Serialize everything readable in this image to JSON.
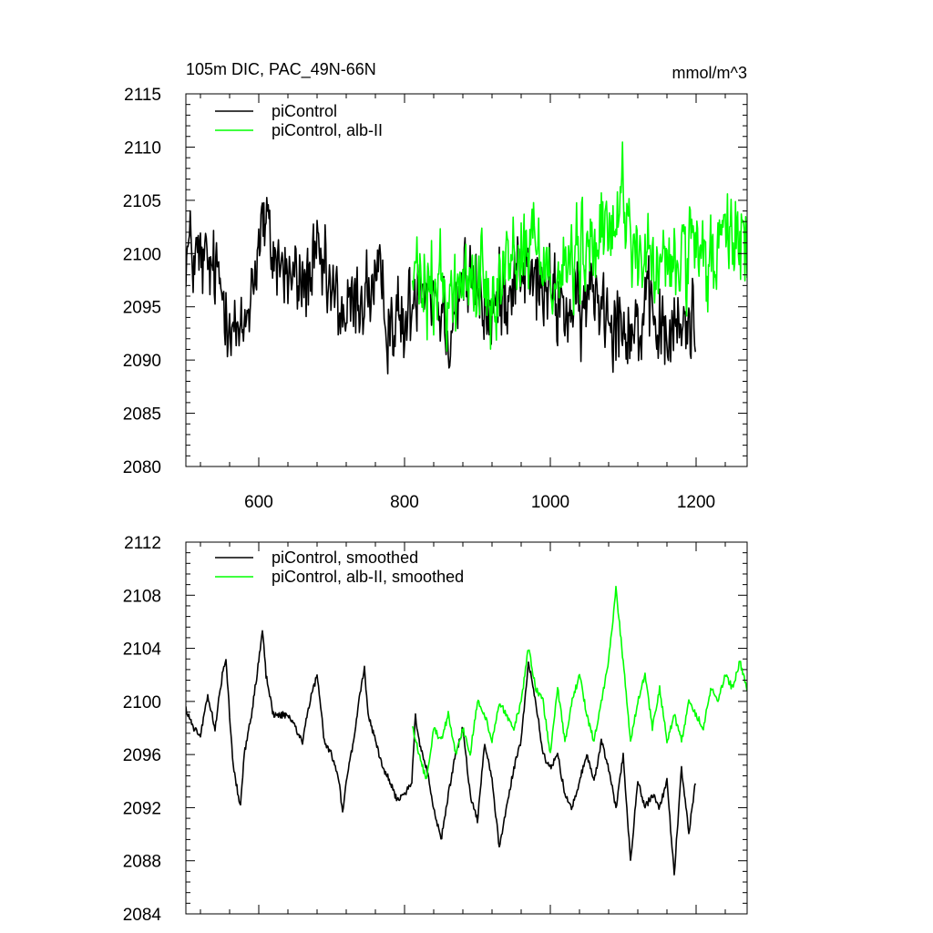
{
  "chart_data": [
    {
      "type": "line",
      "title": "105m DIC, PAC_49N-66N",
      "units": "mmol/m^3",
      "xlim": [
        500,
        1270
      ],
      "ylim": [
        2080,
        2115
      ],
      "x_ticks": [
        600,
        800,
        1000,
        1200
      ],
      "x_tick_labels": [
        "600",
        "800",
        "1000",
        "1200"
      ],
      "y_ticks": [
        2080,
        2085,
        2090,
        2095,
        2100,
        2105,
        2110,
        2115
      ],
      "y_tick_labels": [
        "2080",
        "2085",
        "2090",
        "2095",
        "2100",
        "2105",
        "2110",
        "2115"
      ],
      "legend_position": "top-left",
      "series": [
        {
          "name": "piControl",
          "color": "#000000",
          "x_range": [
            500,
            1199
          ],
          "anchors": [
            [
              500,
              2100.5
            ],
            [
              520,
              2099
            ],
            [
              540,
              2098
            ],
            [
              560,
              2095
            ],
            [
              575,
              2091
            ],
            [
              590,
              2097
            ],
            [
              605,
              2103
            ],
            [
              620,
              2100
            ],
            [
              640,
              2098
            ],
            [
              660,
              2097
            ],
            [
              680,
              2099
            ],
            [
              700,
              2096
            ],
            [
              720,
              2094
            ],
            [
              740,
              2096
            ],
            [
              760,
              2097
            ],
            [
              780,
              2094
            ],
            [
              800,
              2093
            ],
            [
              810,
              2095
            ],
            [
              820,
              2099
            ],
            [
              840,
              2097
            ],
            [
              860,
              2093
            ],
            [
              880,
              2098
            ],
            [
              900,
              2096
            ],
            [
              920,
              2094
            ],
            [
              940,
              2097
            ],
            [
              960,
              2099
            ],
            [
              980,
              2097
            ],
            [
              1000,
              2096
            ],
            [
              1020,
              2095
            ],
            [
              1040,
              2094
            ],
            [
              1060,
              2097
            ],
            [
              1080,
              2095
            ],
            [
              1100,
              2094
            ],
            [
              1120,
              2093
            ],
            [
              1140,
              2094
            ],
            [
              1160,
              2092
            ],
            [
              1180,
              2093
            ],
            [
              1199,
              2094
            ]
          ],
          "noise_amplitude": 3.6
        },
        {
          "name": "piControl, alb-II",
          "color": "#00ff00",
          "x_range": [
            811,
            1270
          ],
          "anchors": [
            [
              811,
              2098
            ],
            [
              830,
              2096
            ],
            [
              850,
              2097
            ],
            [
              870,
              2096
            ],
            [
              890,
              2098
            ],
            [
              910,
              2097
            ],
            [
              930,
              2098
            ],
            [
              950,
              2100
            ],
            [
              970,
              2101
            ],
            [
              990,
              2100
            ],
            [
              1010,
              2098
            ],
            [
              1030,
              2099
            ],
            [
              1050,
              2100
            ],
            [
              1070,
              2101
            ],
            [
              1090,
              2103
            ],
            [
              1100,
              2106
            ],
            [
              1110,
              2103
            ],
            [
              1120,
              2099
            ],
            [
              1140,
              2099
            ],
            [
              1160,
              2098
            ],
            [
              1180,
              2100
            ],
            [
              1200,
              2099
            ],
            [
              1220,
              2099
            ],
            [
              1240,
              2101
            ],
            [
              1260,
              2102
            ],
            [
              1270,
              2101
            ]
          ],
          "noise_amplitude": 3.8
        }
      ]
    },
    {
      "type": "line",
      "xlim": [
        500,
        1270
      ],
      "ylim": [
        2084,
        2112
      ],
      "x_ticks": [
        600,
        800,
        1000,
        1200
      ],
      "y_ticks": [
        2084,
        2088,
        2092,
        2096,
        2100,
        2104,
        2108,
        2112
      ],
      "y_tick_labels": [
        "2084",
        "2088",
        "2092",
        "2096",
        "2100",
        "2104",
        "2108",
        "2112"
      ],
      "legend_position": "top-left",
      "series": [
        {
          "name": "piControl, smoothed",
          "color": "#000000",
          "x_range": [
            500,
            1199
          ],
          "anchors": [
            [
              500,
              2099.5
            ],
            [
              510,
              2098
            ],
            [
              520,
              2097.5
            ],
            [
              530,
              2100.5
            ],
            [
              540,
              2098
            ],
            [
              550,
              2102
            ],
            [
              555,
              2103
            ],
            [
              560,
              2099
            ],
            [
              565,
              2095
            ],
            [
              570,
              2093.5
            ],
            [
              575,
              2092
            ],
            [
              580,
              2096
            ],
            [
              590,
              2099
            ],
            [
              600,
              2103
            ],
            [
              605,
              2105.5
            ],
            [
              610,
              2102
            ],
            [
              620,
              2099
            ],
            [
              640,
              2099
            ],
            [
              660,
              2097
            ],
            [
              670,
              2100
            ],
            [
              680,
              2102
            ],
            [
              690,
              2097
            ],
            [
              700,
              2096
            ],
            [
              710,
              2094
            ],
            [
              715,
              2091.5
            ],
            [
              720,
              2094
            ],
            [
              730,
              2097
            ],
            [
              740,
              2101
            ],
            [
              745,
              2102.5
            ],
            [
              750,
              2099
            ],
            [
              760,
              2097
            ],
            [
              770,
              2095
            ],
            [
              780,
              2094
            ],
            [
              790,
              2092.5
            ],
            [
              800,
              2093
            ],
            [
              810,
              2094
            ],
            [
              815,
              2099
            ],
            [
              820,
              2097
            ],
            [
              830,
              2095
            ],
            [
              840,
              2092
            ],
            [
              850,
              2089.5
            ],
            [
              860,
              2093
            ],
            [
              870,
              2096
            ],
            [
              880,
              2098
            ],
            [
              890,
              2093
            ],
            [
              900,
              2091
            ],
            [
              910,
              2097
            ],
            [
              920,
              2094
            ],
            [
              930,
              2089
            ],
            [
              940,
              2092
            ],
            [
              950,
              2095
            ],
            [
              960,
              2097
            ],
            [
              970,
              2103
            ],
            [
              980,
              2100
            ],
            [
              990,
              2096
            ],
            [
              1000,
              2095
            ],
            [
              1010,
              2096
            ],
            [
              1020,
              2093
            ],
            [
              1030,
              2092
            ],
            [
              1040,
              2094
            ],
            [
              1050,
              2096
            ],
            [
              1060,
              2094
            ],
            [
              1070,
              2097
            ],
            [
              1080,
              2095
            ],
            [
              1090,
              2092
            ],
            [
              1100,
              2096
            ],
            [
              1110,
              2088
            ],
            [
              1120,
              2094
            ],
            [
              1130,
              2092
            ],
            [
              1140,
              2093
            ],
            [
              1150,
              2092
            ],
            [
              1160,
              2094
            ],
            [
              1170,
              2087
            ],
            [
              1180,
              2095
            ],
            [
              1190,
              2090
            ],
            [
              1199,
              2094
            ]
          ]
        },
        {
          "name": "piControl, alb-II, smoothed",
          "color": "#00ff00",
          "x_range": [
            811,
            1270
          ],
          "anchors": [
            [
              811,
              2098
            ],
            [
              820,
              2096
            ],
            [
              830,
              2094
            ],
            [
              840,
              2098
            ],
            [
              850,
              2097
            ],
            [
              860,
              2099
            ],
            [
              870,
              2096
            ],
            [
              880,
              2098
            ],
            [
              890,
              2096
            ],
            [
              900,
              2100
            ],
            [
              910,
              2099
            ],
            [
              920,
              2097
            ],
            [
              930,
              2100
            ],
            [
              940,
              2099
            ],
            [
              950,
              2098
            ],
            [
              960,
              2100
            ],
            [
              970,
              2104
            ],
            [
              980,
              2101
            ],
            [
              990,
              2100
            ],
            [
              1000,
              2096
            ],
            [
              1010,
              2101
            ],
            [
              1020,
              2097
            ],
            [
              1030,
              2100
            ],
            [
              1040,
              2102
            ],
            [
              1050,
              2099
            ],
            [
              1060,
              2097
            ],
            [
              1070,
              2100
            ],
            [
              1080,
              2103
            ],
            [
              1090,
              2108.5
            ],
            [
              1100,
              2103
            ],
            [
              1110,
              2097
            ],
            [
              1120,
              2100
            ],
            [
              1130,
              2102
            ],
            [
              1140,
              2098
            ],
            [
              1150,
              2101
            ],
            [
              1160,
              2097
            ],
            [
              1170,
              2099
            ],
            [
              1180,
              2097
            ],
            [
              1190,
              2100
            ],
            [
              1200,
              2099
            ],
            [
              1210,
              2098
            ],
            [
              1220,
              2101
            ],
            [
              1230,
              2100
            ],
            [
              1240,
              2102
            ],
            [
              1250,
              2101
            ],
            [
              1260,
              2103
            ],
            [
              1270,
              2101
            ]
          ]
        }
      ]
    }
  ]
}
